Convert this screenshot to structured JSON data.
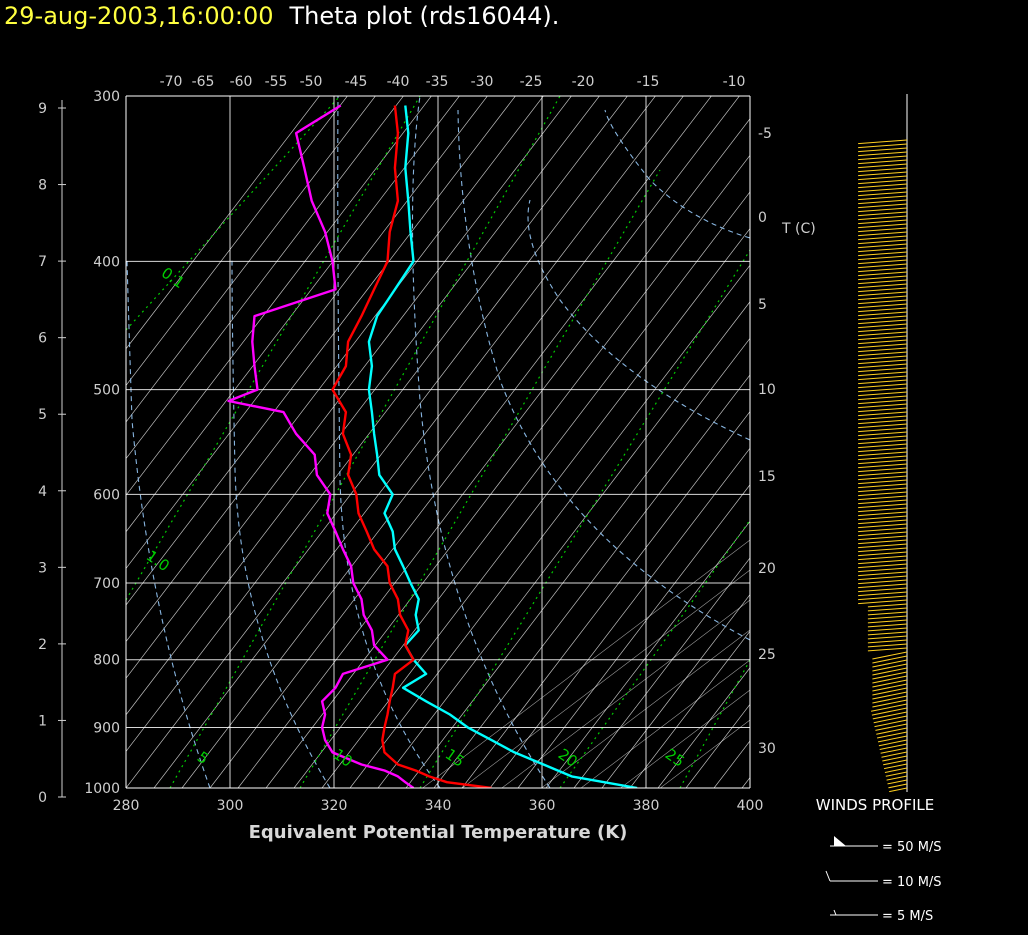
{
  "header": {
    "datetime": "29-aug-2003,16:00:00",
    "title": "Theta plot (rds16044)."
  },
  "colors": {
    "theta_e": "#00ffff",
    "theta": "#ff0000",
    "theta_w": "#ff00ff",
    "wind": "#ffd020",
    "dry_adiabat": "#ffffff",
    "moist_adiabat": "#87b5e0",
    "mixing_ratio": "#00cc00",
    "grid": "#ffffff",
    "date_text": "#ffff40"
  },
  "chart_data": {
    "type": "line",
    "title": "Theta plot (rds16044).",
    "xlabel": "Equivalent Potential Temperature (K)",
    "xlim": [
      280,
      400
    ],
    "x_ticks": [
      "280",
      "300",
      "320",
      "340",
      "360",
      "380",
      "400"
    ],
    "pressure_axis": {
      "range": [
        1000,
        300
      ],
      "ticks": [
        "300",
        "400",
        "500",
        "600",
        "700",
        "800",
        "900",
        "1000"
      ]
    },
    "height_axis": {
      "range": [
        0,
        9
      ],
      "ticks": [
        "0",
        "1",
        "2",
        "3",
        "4",
        "5",
        "6",
        "7",
        "8",
        "9"
      ]
    },
    "top_temperature_ticks": [
      "-70",
      "-65",
      "-60",
      "-55",
      "-50",
      "-45",
      "-40",
      "-35",
      "-30",
      "-25",
      "-20",
      "-15",
      "-10"
    ],
    "right_temperature_label": "T (C)",
    "right_temperature_ticks": [
      "-5",
      "0",
      "5",
      "10",
      "15",
      "20",
      "25",
      "30"
    ],
    "mixing_ratio_labels": [
      "0.1",
      "1.0",
      "5",
      "10",
      "15",
      "20",
      "25"
    ],
    "series": [
      {
        "color": "cyan",
        "pressure": [
          1000,
          980,
          960,
          940,
          920,
          900,
          880,
          860,
          840,
          820,
          800,
          780,
          760,
          740,
          720,
          700,
          680,
          660,
          640,
          620,
          600,
          580,
          560,
          540,
          520,
          500,
          480,
          460,
          440,
          420,
          400,
          380,
          360,
          340,
          320,
          305
        ],
        "values": [
          378,
          366,
          360,
          355,
          350,
          346,
          342,
          338,
          333,
          338,
          335,
          334,
          336,
          336,
          336,
          335,
          333,
          332,
          331,
          330,
          331,
          329,
          328,
          328,
          327,
          327,
          327,
          327,
          328,
          332,
          335,
          335,
          334,
          334,
          334,
          334
        ]
      },
      {
        "color": "red",
        "pressure": [
          1000,
          990,
          980,
          970,
          960,
          940,
          920,
          900,
          880,
          860,
          840,
          820,
          800,
          780,
          760,
          740,
          720,
          700,
          680,
          660,
          640,
          620,
          600,
          580,
          560,
          540,
          520,
          500,
          480,
          460,
          440,
          420,
          400,
          380,
          360,
          340,
          320,
          305
        ],
        "values": [
          350,
          342,
          338,
          336,
          332,
          330,
          329,
          330,
          330,
          331,
          331,
          332,
          335,
          334,
          334,
          333,
          332,
          331,
          330,
          328,
          326,
          325,
          324,
          323,
          323,
          322,
          322,
          320,
          322,
          323,
          325,
          328,
          330,
          331,
          332,
          332,
          332,
          332
        ]
      },
      {
        "color": "magenta",
        "pressure": [
          1000,
          990,
          980,
          970,
          960,
          940,
          920,
          900,
          880,
          860,
          840,
          820,
          800,
          780,
          760,
          740,
          720,
          700,
          680,
          660,
          640,
          620,
          600,
          580,
          560,
          540,
          520,
          510,
          500,
          480,
          460,
          440,
          420,
          400,
          380,
          360,
          340,
          320,
          305
        ],
        "values": [
          335,
          334,
          332,
          330,
          325,
          320,
          318,
          318,
          318,
          318,
          320,
          322,
          330,
          328,
          327,
          326,
          325,
          324,
          323,
          322,
          320,
          319,
          319,
          317,
          316,
          313,
          310,
          300,
          305,
          305,
          304,
          305,
          320,
          320,
          318,
          316,
          314,
          313,
          321
        ]
      }
    ],
    "winds": {
      "label": "WINDS PROFILE",
      "legend": [
        "= 50 M/S",
        "= 10 M/S",
        "= 5 M/S"
      ]
    }
  }
}
